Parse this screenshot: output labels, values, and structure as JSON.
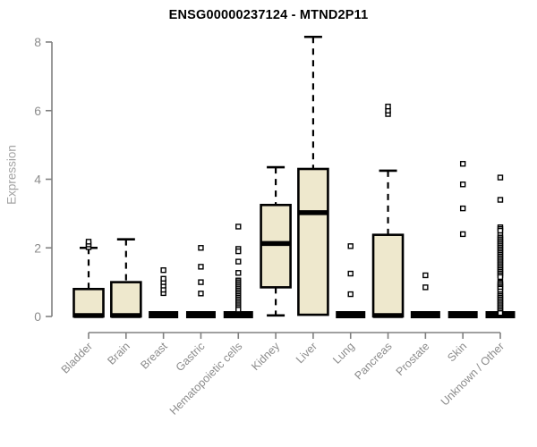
{
  "chart_data": {
    "type": "boxplot",
    "title": "ENSG00000237124 - MTND2P11",
    "ylabel": "Expression",
    "ylim": [
      0,
      8
    ],
    "yticks": [
      "0",
      "2",
      "4",
      "6",
      "8"
    ],
    "grid": false,
    "legend": "none",
    "categories": [
      "Bladder",
      "Brain",
      "Breast",
      "Gastric",
      "Hematopoietic cells",
      "Kidney",
      "Liver",
      "Lung",
      "Pancreas",
      "Prostate",
      "Skin",
      "Unknown / Other"
    ],
    "boxes": [
      {
        "category": "Bladder",
        "q1": 0,
        "median": 0,
        "q3": 0.8,
        "whisker_low": 0,
        "whisker_high": 2.0,
        "outliers": [
          2.02,
          2.1,
          2.18
        ]
      },
      {
        "category": "Brain",
        "q1": 0,
        "median": 0,
        "q3": 1.0,
        "whisker_low": 0,
        "whisker_high": 2.25,
        "outliers": []
      },
      {
        "category": "Breast",
        "q1": 0,
        "median": 0,
        "q3": 0,
        "whisker_low": 0,
        "whisker_high": 0,
        "outliers": [
          0.68,
          0.78,
          0.9,
          1.0,
          1.1,
          1.35
        ]
      },
      {
        "category": "Gastric",
        "q1": 0,
        "median": 0,
        "q3": 0,
        "whisker_low": 0,
        "whisker_high": 0,
        "outliers": [
          0.67,
          1.0,
          1.45,
          2.0
        ]
      },
      {
        "category": "Hematopoietic cells",
        "q1": 0,
        "median": 0,
        "q3": 0,
        "whisker_low": 0,
        "whisker_high": 0,
        "outliers": [
          2.62,
          1.97,
          1.9,
          1.6,
          1.27,
          1.05,
          1.0,
          0.95,
          0.9,
          0.85,
          0.8,
          0.75,
          0.7,
          0.65,
          0.6,
          0.55,
          0.5,
          0.45,
          0.4,
          0.35,
          0.3,
          0.25,
          0.2
        ]
      },
      {
        "category": "Kidney",
        "q1": 0.85,
        "median": 2.1,
        "q3": 3.25,
        "whisker_low": 0.03,
        "whisker_high": 4.35,
        "outliers": []
      },
      {
        "category": "Liver",
        "q1": 0.05,
        "median": 3.0,
        "q3": 4.3,
        "whisker_low": 0.05,
        "whisker_high": 8.15,
        "outliers": []
      },
      {
        "category": "Lung",
        "q1": 0,
        "median": 0,
        "q3": 0,
        "whisker_low": 0,
        "whisker_high": 0,
        "outliers": [
          0.65,
          1.25,
          2.05
        ]
      },
      {
        "category": "Pancreas",
        "q1": 0,
        "median": 0,
        "q3": 2.38,
        "whisker_low": 0,
        "whisker_high": 4.25,
        "outliers": [
          5.9,
          6.0,
          6.12
        ]
      },
      {
        "category": "Prostate",
        "q1": 0,
        "median": 0,
        "q3": 0,
        "whisker_low": 0,
        "whisker_high": 0,
        "outliers": [
          0.85,
          1.2
        ]
      },
      {
        "category": "Skin",
        "q1": 0,
        "median": 0,
        "q3": 0,
        "whisker_low": 0,
        "whisker_high": 0,
        "outliers": [
          2.4,
          3.15,
          3.85,
          4.45
        ]
      },
      {
        "category": "Unknown / Other",
        "q1": 0,
        "median": 0,
        "q3": 0,
        "whisker_low": 0,
        "whisker_high": 0,
        "outliers": [
          4.05,
          3.4,
          2.6,
          2.55,
          2.5,
          2.37,
          2.3,
          2.25,
          2.2,
          2.15,
          2.1,
          2.05,
          2.0,
          1.95,
          1.9,
          1.85,
          1.8,
          1.75,
          1.7,
          1.65,
          1.6,
          1.55,
          1.5,
          1.45,
          1.4,
          1.35,
          1.3,
          1.25,
          1.2,
          1.15,
          0.99,
          0.95,
          0.9,
          0.85,
          0.81,
          0.73,
          0.65,
          0.6,
          0.55,
          0.5,
          0.45,
          0.4,
          0.35,
          0.3,
          0.25,
          0.2,
          0.15,
          0.1
        ]
      }
    ],
    "colors": {
      "box_fill": "#EEE8CD",
      "box_stroke": "#000000",
      "median": "#000000",
      "outlier_stroke": "#000000",
      "outlier_fill": "#ffffff",
      "axis": "#808080",
      "tick_label": "#8c8c8c",
      "y_label": "#a3a3a3",
      "title": "#000000",
      "background": "#ffffff"
    }
  }
}
